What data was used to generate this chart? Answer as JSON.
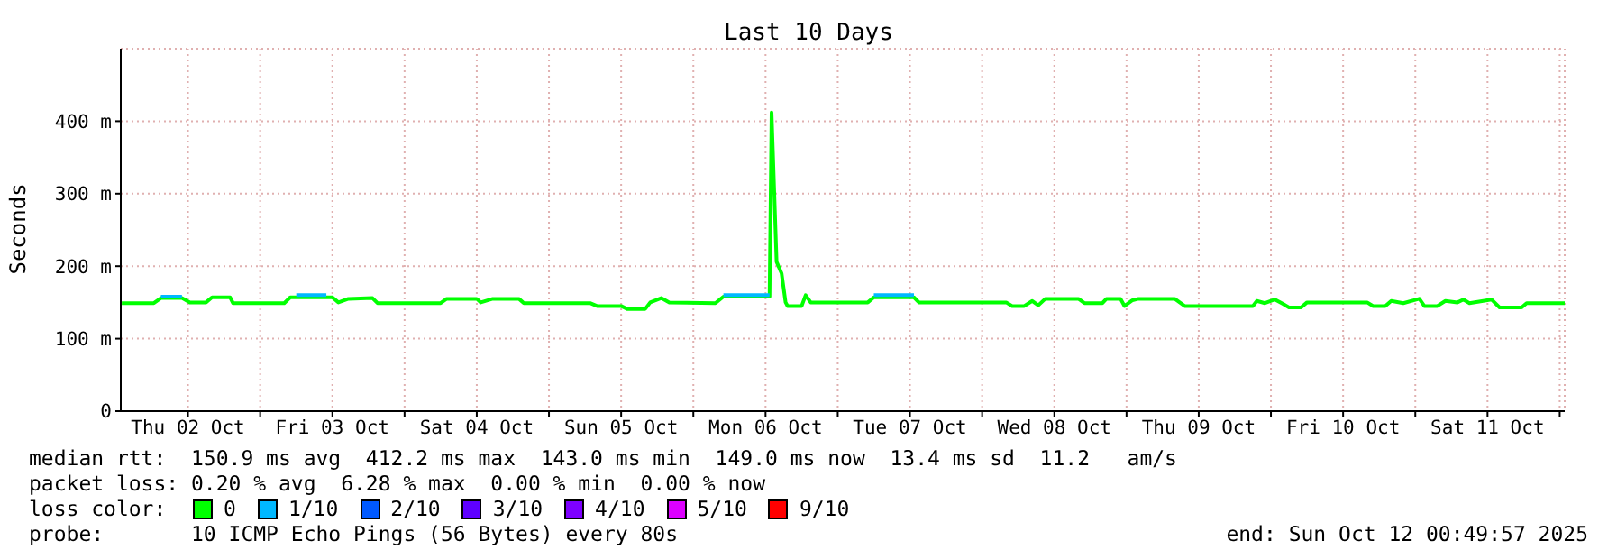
{
  "chart_data": {
    "type": "line",
    "title": "Last 10 Days",
    "ylabel": "Seconds",
    "legend_title": "loss color:",
    "legend": "bottom",
    "grid": true,
    "marker": "none",
    "line_style": "solid",
    "xlim": [
      "2025-10-02T00:50",
      "2025-10-12T00:50"
    ],
    "xticks": [
      {
        "value": "2025-10-02T12:00",
        "label": "Thu 02 Oct"
      },
      {
        "value": "2025-10-03T00:00",
        "label": null
      },
      {
        "value": "2025-10-03T12:00",
        "label": "Fri 03 Oct"
      },
      {
        "value": "2025-10-04T00:00",
        "label": null
      },
      {
        "value": "2025-10-04T12:00",
        "label": "Sat 04 Oct"
      },
      {
        "value": "2025-10-05T00:00",
        "label": null
      },
      {
        "value": "2025-10-05T12:00",
        "label": "Sun 05 Oct"
      },
      {
        "value": "2025-10-06T00:00",
        "label": null
      },
      {
        "value": "2025-10-06T12:00",
        "label": "Mon 06 Oct"
      },
      {
        "value": "2025-10-07T00:00",
        "label": null
      },
      {
        "value": "2025-10-07T12:00",
        "label": "Tue 07 Oct"
      },
      {
        "value": "2025-10-08T00:00",
        "label": null
      },
      {
        "value": "2025-10-08T12:00",
        "label": "Wed 08 Oct"
      },
      {
        "value": "2025-10-09T00:00",
        "label": null
      },
      {
        "value": "2025-10-09T12:00",
        "label": "Thu 09 Oct"
      },
      {
        "value": "2025-10-10T00:00",
        "label": null
      },
      {
        "value": "2025-10-10T12:00",
        "label": "Fri 10 Oct"
      },
      {
        "value": "2025-10-11T00:00",
        "label": null
      },
      {
        "value": "2025-10-11T12:00",
        "label": "Sat 11 Oct"
      },
      {
        "value": "2025-10-12T00:00",
        "label": null
      }
    ],
    "ylim": [
      0,
      500
    ],
    "yticks": [
      0,
      {
        "value": 100,
        "label": "100 m"
      },
      {
        "value": 200,
        "label": "200 m"
      },
      {
        "value": 300,
        "label": "300 m"
      },
      {
        "value": 400,
        "label": "400 m"
      }
    ],
    "series": [
      {
        "name": "0",
        "color": "#00ff00",
        "x": [
          "2025-10-02T01:00",
          "2025-10-02T06:20",
          "2025-10-02T07:30",
          "2025-10-02T11:00",
          "2025-10-02T12:20",
          "2025-10-02T15:00",
          "2025-10-02T16:00",
          "2025-10-02T19:00",
          "2025-10-02T19:30",
          "2025-10-03T04:00",
          "2025-10-03T05:00",
          "2025-10-03T12:00",
          "2025-10-03T13:00",
          "2025-10-03T14:40",
          "2025-10-03T18:40",
          "2025-10-03T19:30",
          "2025-10-04T06:00",
          "2025-10-04T07:00",
          "2025-10-04T12:00",
          "2025-10-04T12:40",
          "2025-10-04T14:40",
          "2025-10-04T19:00",
          "2025-10-04T19:50",
          "2025-10-05T06:50",
          "2025-10-05T08:00",
          "2025-10-05T12:00",
          "2025-10-05T13:00",
          "2025-10-05T16:00",
          "2025-10-05T16:50",
          "2025-10-05T18:40",
          "2025-10-05T20:00",
          "2025-10-06T03:40",
          "2025-10-06T05:00",
          "2025-10-06T12:40",
          "2025-10-06T13:00",
          "2025-10-06T13:50",
          "2025-10-06T14:40",
          "2025-10-06T15:20",
          "2025-10-06T15:40",
          "2025-10-06T18:00",
          "2025-10-06T18:40",
          "2025-10-06T19:30",
          "2025-10-07T05:00",
          "2025-10-07T06:00",
          "2025-10-07T12:40",
          "2025-10-07T13:30",
          "2025-10-08T04:00",
          "2025-10-08T05:00",
          "2025-10-08T07:00",
          "2025-10-08T08:20",
          "2025-10-08T09:20",
          "2025-10-08T10:30",
          "2025-10-08T16:00",
          "2025-10-08T17:00",
          "2025-10-08T20:00",
          "2025-10-08T20:40",
          "2025-10-08T23:00",
          "2025-10-08T23:40",
          "2025-10-09T01:00",
          "2025-10-09T02:00",
          "2025-10-09T08:00",
          "2025-10-09T09:40",
          "2025-10-09T21:00",
          "2025-10-09T21:40",
          "2025-10-09T23:00",
          "2025-10-10T00:40",
          "2025-10-10T02:00",
          "2025-10-10T03:00",
          "2025-10-10T05:00",
          "2025-10-10T06:00",
          "2025-10-10T16:00",
          "2025-10-10T17:00",
          "2025-10-10T19:00",
          "2025-10-10T20:00",
          "2025-10-10T22:00",
          "2025-10-11T00:40",
          "2025-10-11T01:30",
          "2025-10-11T03:40",
          "2025-10-11T05:00",
          "2025-10-11T07:00",
          "2025-10-11T08:00",
          "2025-10-11T09:00",
          "2025-10-11T12:40",
          "2025-10-11T14:00",
          "2025-10-11T17:40",
          "2025-10-11T18:30",
          "2025-10-12T00:50"
        ],
        "values": [
          149,
          149,
          156,
          156,
          150,
          150,
          157,
          157,
          149,
          149,
          157,
          157,
          150,
          155,
          156,
          149,
          149,
          155,
          155,
          150,
          155,
          155,
          149,
          149,
          145,
          145,
          141,
          141,
          150,
          156,
          150,
          149,
          158,
          158,
          412,
          206,
          190,
          150,
          145,
          145,
          160,
          150,
          150,
          157,
          157,
          150,
          150,
          145,
          145,
          152,
          146,
          155,
          155,
          149,
          149,
          155,
          155,
          145,
          153,
          155,
          155,
          145,
          145,
          152,
          149,
          154,
          148,
          143,
          143,
          150,
          150,
          145,
          145,
          152,
          149,
          155,
          145,
          145,
          152,
          150,
          154,
          149,
          154,
          143,
          143,
          149,
          149
        ]
      },
      {
        "name": "1/10",
        "color": "#00b8ff",
        "x": [
          "2025-10-02T07:30",
          "2025-10-02T11:00",
          "2025-10-02T12:00",
          "2025-10-03T06:00",
          "2025-10-03T11:00",
          "2025-10-03T12:00",
          "2025-10-06T05:00",
          "2025-10-06T12:40",
          "2025-10-06T13:00",
          "2025-10-07T06:00",
          "2025-10-07T12:40"
        ],
        "values": [
          158,
          158,
          null,
          160,
          160,
          null,
          160,
          160,
          null,
          160,
          160
        ]
      },
      {
        "name": "2/10",
        "color": "#0059ff"
      },
      {
        "name": "3/10",
        "color": "#5e00ff"
      },
      {
        "name": "4/10",
        "color": "#7e00ff"
      },
      {
        "name": "5/10",
        "color": "#dd00ff"
      },
      {
        "name": "9/10",
        "color": "#ff0000"
      }
    ],
    "annotations": [
      "median rtt:  150.9 ms avg  412.2 ms max  143.0 ms min  149.0 ms now  13.4 ms sd  11.2   am/s",
      "packet loss: 0.20 % avg  6.28 % max  0.00 % min  0.00 % now",
      "probe:       10 ICMP Echo Pings (56 Bytes) every 80s",
      "end: Sun Oct 12 00:49:57 2025"
    ]
  }
}
